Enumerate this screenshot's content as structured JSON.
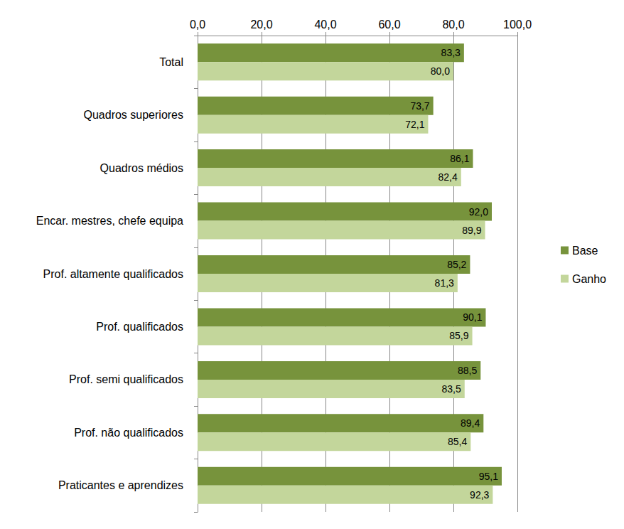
{
  "chart_data": {
    "type": "bar",
    "orientation": "horizontal",
    "categories": [
      "Total",
      "Quadros superiores",
      "Quadros médios",
      "Encar. mestres, chefe equipa",
      "Prof. altamente qualificados",
      "Prof. qualificados",
      "Prof. semi qualificados",
      "Prof. não qualificados",
      "Praticantes e aprendizes"
    ],
    "series": [
      {
        "name": "Base",
        "color": "#77933c",
        "values": [
          83.3,
          73.7,
          86.1,
          92.0,
          85.2,
          90.1,
          88.5,
          89.4,
          95.1
        ],
        "value_labels": [
          "83,3",
          "73,7",
          "86,1",
          "92,0",
          "85,2",
          "90,1",
          "88,5",
          "89,4",
          "95,1"
        ]
      },
      {
        "name": "Ganho",
        "color": "#c3d69b",
        "values": [
          80.0,
          72.1,
          82.4,
          89.9,
          81.3,
          85.9,
          83.5,
          85.4,
          92.3
        ],
        "value_labels": [
          "80,0",
          "72,1",
          "82,4",
          "89,9",
          "81,3",
          "85,9",
          "83,5",
          "85,4",
          "92,3"
        ]
      }
    ],
    "xlim": [
      0,
      100
    ],
    "xticks": [
      {
        "value": 0,
        "label": "0,0"
      },
      {
        "value": 20,
        "label": "20,0"
      },
      {
        "value": 40,
        "label": "40,0"
      },
      {
        "value": 60,
        "label": "60,0"
      },
      {
        "value": 80,
        "label": "80,0"
      },
      {
        "value": 100,
        "label": "100,0"
      }
    ],
    "grid": true,
    "legend": "right",
    "data_labels": true
  }
}
